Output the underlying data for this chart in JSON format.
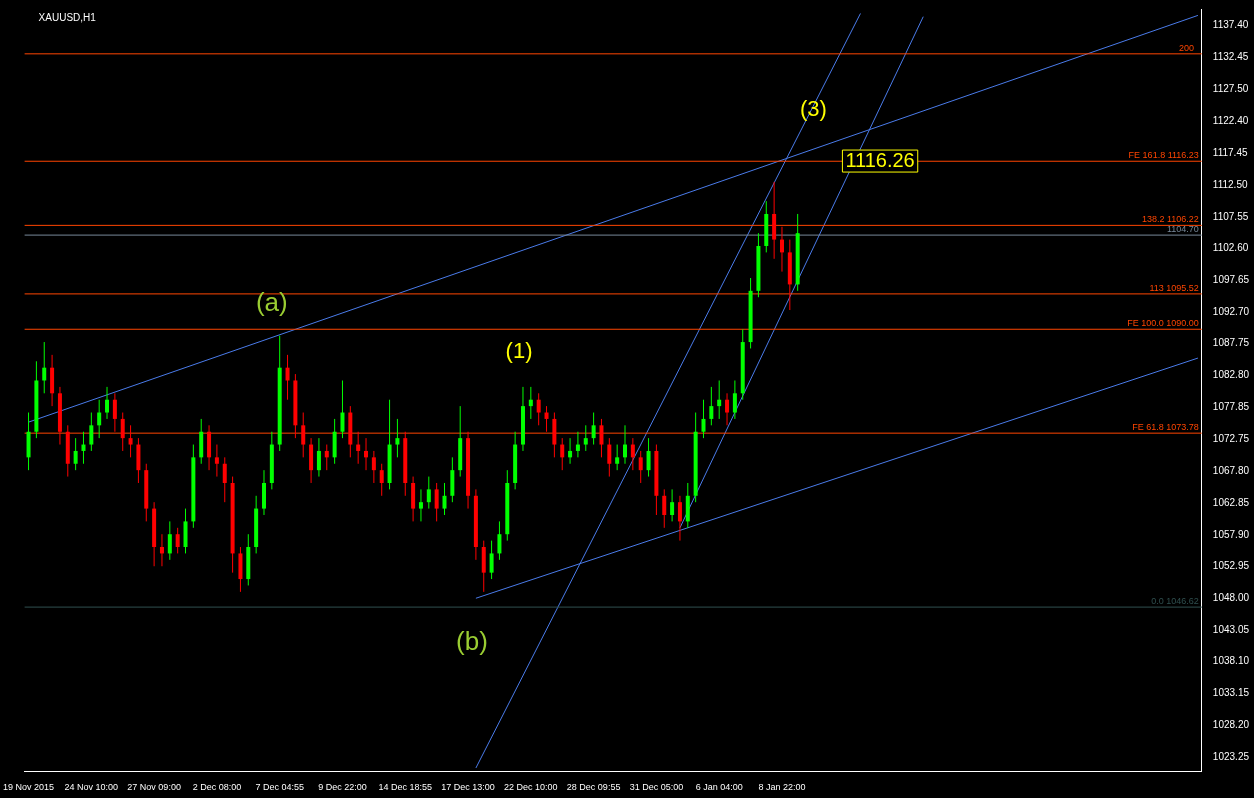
{
  "chart_data": {
    "type": "candlestick",
    "title": "XAUUSD,H1",
    "categories": [
      "19 Nov 2015",
      null,
      null,
      null,
      null,
      null,
      null,
      null,
      "24 Nov 10:00",
      null,
      null,
      null,
      null,
      null,
      null,
      null,
      "27 Nov 09:00",
      null,
      null,
      null,
      null,
      null,
      null,
      null,
      "2 Dec 08:00",
      null,
      null,
      null,
      null,
      null,
      null,
      null,
      "7 Dec 04:55",
      null,
      null,
      null,
      null,
      null,
      null,
      null,
      "9 Dec 22:00",
      null,
      null,
      null,
      null,
      null,
      null,
      null,
      "14 Dec 18:55",
      null,
      null,
      null,
      null,
      null,
      null,
      null,
      "17 Dec 13:00",
      null,
      null,
      null,
      null,
      null,
      null,
      null,
      "22 Dec 10:00",
      null,
      null,
      null,
      null,
      null,
      null,
      null,
      "28 Dec 09:55",
      null,
      null,
      null,
      null,
      null,
      null,
      null,
      "31 Dec 05:00",
      null,
      null,
      null,
      null,
      null,
      null,
      null,
      "6 Jan 04:00",
      null,
      null,
      null,
      null,
      null,
      null,
      null,
      "8 Jan 22:00",
      null,
      null,
      null,
      null,
      null,
      null,
      null,
      null,
      null,
      null,
      null,
      null,
      null,
      null,
      null,
      null,
      null,
      null,
      null,
      null,
      null,
      null,
      null,
      null,
      null,
      null,
      null,
      null,
      null,
      null,
      null,
      null,
      null,
      null,
      null,
      null,
      null,
      null,
      null,
      null,
      null,
      null,
      null,
      null,
      null,
      null,
      null,
      null,
      null,
      null,
      null,
      null,
      null
    ],
    "ohlc": [
      [
        1070,
        1077,
        1068,
        1074
      ],
      [
        1074,
        1085,
        1073,
        1082
      ],
      [
        1082,
        1088,
        1080,
        1084
      ],
      [
        1084,
        1086,
        1078,
        1080
      ],
      [
        1080,
        1081,
        1072,
        1074
      ],
      [
        1074,
        1075,
        1067,
        1069
      ],
      [
        1069,
        1073,
        1068,
        1071
      ],
      [
        1071,
        1074,
        1069,
        1072
      ],
      [
        1072,
        1077,
        1071,
        1075
      ],
      [
        1075,
        1079,
        1073,
        1077
      ],
      [
        1077,
        1081,
        1076,
        1079
      ],
      [
        1079,
        1080,
        1074,
        1076
      ],
      [
        1076,
        1077,
        1071,
        1073
      ],
      [
        1073,
        1075,
        1070,
        1072
      ],
      [
        1072,
        1073,
        1066,
        1068
      ],
      [
        1068,
        1069,
        1060,
        1062
      ],
      [
        1062,
        1063,
        1053,
        1056
      ],
      [
        1056,
        1058,
        1053,
        1055
      ],
      [
        1055,
        1060,
        1054,
        1058
      ],
      [
        1058,
        1059,
        1055,
        1056
      ],
      [
        1056,
        1062,
        1055,
        1060
      ],
      [
        1060,
        1072,
        1059,
        1070
      ],
      [
        1070,
        1076,
        1069,
        1074
      ],
      [
        1074,
        1075,
        1068,
        1070
      ],
      [
        1070,
        1072,
        1067,
        1069
      ],
      [
        1069,
        1070,
        1063,
        1066
      ],
      [
        1066,
        1067,
        1052,
        1055
      ],
      [
        1055,
        1056,
        1049,
        1051
      ],
      [
        1051,
        1058,
        1050,
        1056
      ],
      [
        1056,
        1064,
        1055,
        1062
      ],
      [
        1062,
        1068,
        1061,
        1066
      ],
      [
        1066,
        1074,
        1065,
        1072
      ],
      [
        1072,
        1089,
        1071,
        1084
      ],
      [
        1084,
        1086,
        1079,
        1082
      ],
      [
        1082,
        1083,
        1073,
        1075
      ],
      [
        1075,
        1077,
        1070,
        1072
      ],
      [
        1072,
        1073,
        1066,
        1068
      ],
      [
        1068,
        1073,
        1067,
        1071
      ],
      [
        1071,
        1072,
        1068,
        1070
      ],
      [
        1070,
        1076,
        1069,
        1074
      ],
      [
        1074,
        1082,
        1073,
        1077
      ],
      [
        1077,
        1078,
        1070,
        1072
      ],
      [
        1072,
        1074,
        1069,
        1071
      ],
      [
        1071,
        1073,
        1068,
        1070
      ],
      [
        1070,
        1071,
        1066,
        1068
      ],
      [
        1068,
        1069,
        1064,
        1066
      ],
      [
        1066,
        1079,
        1065,
        1072
      ],
      [
        1072,
        1076,
        1070,
        1073
      ],
      [
        1073,
        1074,
        1064,
        1066
      ],
      [
        1066,
        1067,
        1060,
        1062
      ],
      [
        1062,
        1065,
        1060,
        1063
      ],
      [
        1063,
        1067,
        1062,
        1065
      ],
      [
        1065,
        1066,
        1060,
        1062
      ],
      [
        1062,
        1066,
        1061,
        1064
      ],
      [
        1064,
        1070,
        1063,
        1068
      ],
      [
        1068,
        1078,
        1067,
        1073
      ],
      [
        1073,
        1074,
        1062,
        1064
      ],
      [
        1064,
        1065,
        1054,
        1056
      ],
      [
        1056,
        1057,
        1049,
        1052
      ],
      [
        1052,
        1057,
        1051,
        1055
      ],
      [
        1055,
        1060,
        1054,
        1058
      ],
      [
        1058,
        1068,
        1057,
        1066
      ],
      [
        1066,
        1074,
        1065,
        1072
      ],
      [
        1072,
        1081,
        1071,
        1078
      ],
      [
        1078,
        1081,
        1076,
        1079
      ],
      [
        1079,
        1080,
        1075,
        1077
      ],
      [
        1077,
        1078,
        1074,
        1076
      ],
      [
        1076,
        1077,
        1070,
        1072
      ],
      [
        1072,
        1073,
        1068,
        1070
      ],
      [
        1070,
        1073,
        1069,
        1071
      ],
      [
        1071,
        1074,
        1070,
        1072
      ],
      [
        1072,
        1075,
        1071,
        1073
      ],
      [
        1073,
        1077,
        1072,
        1075
      ],
      [
        1075,
        1076,
        1070,
        1072
      ],
      [
        1072,
        1073,
        1067,
        1069
      ],
      [
        1069,
        1072,
        1068,
        1070
      ],
      [
        1070,
        1075,
        1069,
        1072
      ],
      [
        1072,
        1073,
        1068,
        1070
      ],
      [
        1070,
        1071,
        1066,
        1068
      ],
      [
        1068,
        1073,
        1067,
        1071
      ],
      [
        1071,
        1072,
        1061,
        1064
      ],
      [
        1064,
        1065,
        1059,
        1061
      ],
      [
        1061,
        1065,
        1060,
        1063
      ],
      [
        1063,
        1064,
        1057,
        1060
      ],
      [
        1060,
        1066,
        1059,
        1064
      ],
      [
        1064,
        1077,
        1063,
        1074
      ],
      [
        1074,
        1079,
        1073,
        1076
      ],
      [
        1076,
        1081,
        1075,
        1078
      ],
      [
        1078,
        1082,
        1076,
        1079
      ],
      [
        1079,
        1080,
        1075,
        1077
      ],
      [
        1077,
        1082,
        1076,
        1080
      ],
      [
        1080,
        1090,
        1079,
        1088
      ],
      [
        1088,
        1098,
        1087,
        1096
      ],
      [
        1096,
        1105,
        1095,
        1103
      ],
      [
        1103,
        1110,
        1102,
        1108
      ],
      [
        1108,
        1113,
        1101,
        1104
      ],
      [
        1104,
        1106,
        1099,
        1102
      ],
      [
        1102,
        1104,
        1093,
        1097
      ],
      [
        1097,
        1108,
        1096,
        1105
      ],
      null,
      null,
      null,
      null,
      null,
      null,
      null,
      null,
      null,
      null,
      null,
      null,
      null,
      null,
      null,
      null,
      null,
      null,
      null,
      null,
      null,
      null,
      null,
      null,
      null,
      null,
      null,
      null,
      null,
      null,
      null,
      null,
      null,
      null,
      null,
      null,
      null,
      null,
      null,
      null,
      null,
      null,
      null,
      null,
      null,
      null,
      null,
      null,
      null,
      null,
      null
    ],
    "colors": [
      "#00ff00",
      "#00ff00",
      "#00ff00",
      "#ff0000",
      "#ff0000",
      "#ff0000",
      "#00ff00",
      "#00ff00",
      "#00ff00",
      "#00ff00",
      "#00ff00",
      "#ff0000",
      "#ff0000",
      "#ff0000",
      "#ff0000",
      "#ff0000",
      "#ff0000",
      "#ff0000",
      "#00ff00",
      "#ff0000",
      "#00ff00",
      "#00ff00",
      "#00ff00",
      "#ff0000",
      "#ff0000",
      "#ff0000",
      "#ff0000",
      "#ff0000",
      "#00ff00",
      "#00ff00",
      "#00ff00",
      "#00ff00",
      "#00ff00",
      "#ff0000",
      "#ff0000",
      "#ff0000",
      "#ff0000",
      "#00ff00",
      "#ff0000",
      "#00ff00",
      "#00ff00",
      "#ff0000",
      "#ff0000",
      "#ff0000",
      "#ff0000",
      "#ff0000",
      "#00ff00",
      "#00ff00",
      "#ff0000",
      "#ff0000",
      "#00ff00",
      "#00ff00",
      "#ff0000",
      "#00ff00",
      "#00ff00",
      "#00ff00",
      "#ff0000",
      "#ff0000",
      "#ff0000",
      "#00ff00",
      "#00ff00",
      "#00ff00",
      "#00ff00",
      "#00ff00",
      "#00ff00",
      "#ff0000",
      "#ff0000",
      "#ff0000",
      "#ff0000",
      "#00ff00",
      "#00ff00",
      "#00ff00",
      "#00ff00",
      "#ff0000",
      "#ff0000",
      "#00ff00",
      "#00ff00",
      "#ff0000",
      "#ff0000",
      "#00ff00",
      "#ff0000",
      "#ff0000",
      "#00ff00",
      "#ff0000",
      "#00ff00",
      "#00ff00",
      "#00ff00",
      "#00ff00",
      "#00ff00",
      "#ff0000",
      "#00ff00",
      "#00ff00",
      "#00ff00",
      "#00ff00",
      "#00ff00",
      "#ff0000",
      "#ff0000",
      "#ff0000",
      "#00ff00",
      null,
      null,
      null,
      null,
      null,
      null,
      null,
      null,
      null,
      null,
      null,
      null,
      null,
      null,
      null,
      null,
      null,
      null,
      null,
      null,
      null,
      null,
      null,
      null,
      null,
      null,
      null,
      null,
      null,
      null,
      null,
      null,
      null,
      null,
      null,
      null,
      null,
      null,
      null,
      null,
      null,
      null,
      null,
      null,
      null,
      null,
      null,
      null,
      null,
      null,
      null
    ],
    "series": [
      {
        "type": "line",
        "color": "#4a7bea",
        "values": [
          1075.5,
          null,
          null,
          null,
          null,
          null,
          null,
          null,
          null,
          null,
          null,
          null,
          null,
          null,
          null,
          null,
          null,
          null,
          null,
          null,
          null,
          null,
          null,
          null,
          null,
          null,
          null,
          null,
          null,
          null,
          null,
          null,
          null,
          null,
          null,
          null,
          null,
          null,
          null,
          null,
          null,
          null,
          null,
          null,
          null,
          null,
          null,
          null,
          null,
          null,
          null,
          null,
          null,
          null,
          null,
          null,
          null,
          null,
          null,
          null,
          null,
          null,
          null,
          null,
          null,
          null,
          null,
          null,
          null,
          null,
          null,
          null,
          null,
          null,
          null,
          null,
          null,
          null,
          null,
          null,
          null,
          null,
          null,
          null,
          null,
          null,
          null,
          null,
          null,
          null,
          null,
          null,
          null,
          null,
          null,
          null,
          null,
          null,
          null,
          null,
          null,
          null,
          null,
          null,
          null,
          null,
          null,
          null,
          null,
          null,
          null,
          null,
          null,
          null,
          null,
          null,
          null,
          null,
          null,
          null,
          null,
          null,
          null,
          null,
          null,
          null,
          null,
          null,
          null,
          null,
          null,
          null,
          null,
          null,
          null,
          null,
          null,
          null,
          null,
          null,
          null,
          null,
          null,
          null,
          null,
          null,
          null,
          null,
          null,
          1139.0
        ]
      },
      {
        "type": "line",
        "color": "#4a7bea",
        "values": [
          null,
          null,
          null,
          null,
          null,
          null,
          null,
          null,
          null,
          null,
          null,
          null,
          null,
          null,
          null,
          null,
          null,
          null,
          null,
          null,
          null,
          null,
          null,
          null,
          null,
          null,
          null,
          null,
          null,
          null,
          null,
          null,
          null,
          null,
          null,
          null,
          null,
          null,
          null,
          null,
          null,
          null,
          null,
          null,
          null,
          null,
          null,
          null,
          null,
          null,
          null,
          null,
          null,
          null,
          null,
          null,
          null,
          1048,
          null,
          null,
          null,
          null,
          null,
          null,
          null,
          null,
          null,
          null,
          null,
          null,
          null,
          null,
          null,
          null,
          null,
          null,
          null,
          null,
          null,
          null,
          null,
          null,
          null,
          null,
          null,
          null,
          null,
          null,
          null,
          null,
          null,
          null,
          null,
          null,
          null,
          null,
          null,
          null,
          null,
          null,
          null,
          null,
          null,
          null,
          null,
          null,
          null,
          null,
          null,
          null,
          null,
          null,
          null,
          null,
          null,
          null,
          null,
          null,
          null,
          null,
          null,
          null,
          null,
          null,
          null,
          null,
          null,
          null,
          null,
          null,
          null,
          null,
          null,
          null,
          null,
          null,
          null,
          null,
          null,
          null,
          null,
          null,
          null,
          null,
          null,
          null,
          null,
          null,
          null,
          1085.5
        ]
      },
      {
        "type": "line",
        "color": "#4a7bea",
        "values": [
          null,
          null,
          null,
          null,
          null,
          null,
          null,
          null,
          null,
          null,
          null,
          null,
          null,
          null,
          null,
          null,
          null,
          null,
          null,
          null,
          null,
          null,
          null,
          null,
          null,
          null,
          null,
          null,
          null,
          null,
          null,
          null,
          null,
          null,
          null,
          null,
          null,
          null,
          null,
          null,
          null,
          null,
          null,
          null,
          null,
          null,
          null,
          null,
          null,
          null,
          null,
          null,
          null,
          null,
          null,
          null,
          null,
          1021.5,
          null,
          null,
          null,
          null,
          null,
          null,
          null,
          null,
          null,
          null,
          null,
          null,
          null,
          null,
          null,
          null,
          null,
          null,
          null,
          null,
          null,
          null,
          null,
          null,
          null,
          null,
          null,
          null,
          null,
          null,
          null,
          null,
          null,
          null,
          null,
          null,
          null,
          null,
          null,
          null,
          null,
          null,
          null,
          null,
          null,
          null,
          null,
          null,
          1139.3,
          null,
          null,
          null,
          null,
          null,
          null,
          null,
          null,
          null,
          null,
          null,
          null,
          null,
          null,
          null,
          null,
          null,
          null,
          null,
          null,
          null,
          null,
          null,
          null,
          null,
          null,
          null,
          null,
          null,
          null,
          null,
          null,
          null,
          null,
          null,
          null,
          null,
          null,
          null,
          null,
          null,
          null,
          null
        ]
      },
      {
        "type": "line",
        "color": "#4a7bea",
        "values": [
          null,
          null,
          null,
          null,
          null,
          null,
          null,
          null,
          null,
          null,
          null,
          null,
          null,
          null,
          null,
          null,
          null,
          null,
          null,
          null,
          null,
          null,
          null,
          null,
          null,
          null,
          null,
          null,
          null,
          null,
          null,
          null,
          null,
          null,
          null,
          null,
          null,
          null,
          null,
          null,
          null,
          null,
          null,
          null,
          null,
          null,
          null,
          null,
          null,
          null,
          null,
          null,
          null,
          null,
          null,
          null,
          null,
          null,
          null,
          null,
          null,
          null,
          null,
          null,
          null,
          null,
          null,
          null,
          null,
          null,
          null,
          null,
          null,
          null,
          null,
          null,
          null,
          null,
          null,
          null,
          null,
          null,
          null,
          1059.0,
          null,
          null,
          null,
          null,
          null,
          null,
          null,
          null,
          null,
          null,
          null,
          null,
          null,
          null,
          null,
          null,
          null,
          null,
          null,
          null,
          null,
          null,
          null,
          null,
          null,
          null,
          null,
          null,
          null,
          null,
          1138.8,
          null,
          null,
          null,
          null,
          null,
          null,
          null,
          null,
          null,
          null,
          null,
          null,
          null,
          null,
          null,
          null,
          null,
          null,
          null,
          null,
          null,
          null,
          null,
          null,
          null,
          null,
          null,
          null,
          null,
          null,
          null,
          null,
          null,
          null,
          null
        ]
      }
    ],
    "ylim": [
      1021,
      1140
    ],
    "yticks": [
      {
        "value": 1137.4,
        "label": "1137.40"
      },
      1132.45,
      {
        "value": 1127.5,
        "label": "1127.50"
      },
      {
        "value": 1122.4,
        "label": "1122.40"
      },
      1117.45,
      {
        "value": 1112.5,
        "label": "1112.50"
      },
      1107.55,
      {
        "value": 1102.6,
        "label": "1102.60"
      },
      1097.65,
      {
        "value": 1092.7,
        "label": "1092.70"
      },
      1087.75,
      {
        "value": 1082.8,
        "label": "1082.80"
      },
      1077.85,
      1072.75,
      {
        "value": 1067.8,
        "label": "1067.80"
      },
      1062.85,
      {
        "value": 1057.9,
        "label": "1057.90"
      },
      1052.95,
      {
        "value": 1048,
        "label": "1048.00"
      },
      1043.05,
      {
        "value": 1038.1,
        "label": "1038.10"
      },
      1033.15,
      {
        "value": 1028.2,
        "label": "1028.20"
      },
      1023.25
    ],
    "ref_lines": [
      {
        "axis": "y",
        "value": 1133,
        "color": "#ff4500"
      },
      {
        "axis": "y",
        "value": 1116.23,
        "label": "FE 161.8 1116.23",
        "color": "#ff4500"
      },
      {
        "axis": "y",
        "value": 1106.22,
        "label": "138.2 1106.22",
        "color": "#ff4500"
      },
      {
        "axis": "y",
        "value": 1104.7,
        "label": "1104.70",
        "color": "#778899"
      },
      {
        "axis": "y",
        "value": 1095.52,
        "label": "113 1095.52",
        "color": "#ff4500"
      },
      {
        "axis": "y",
        "value": 1090.0,
        "label": "FE 100.0 1090.00",
        "color": "#ff4500"
      },
      {
        "axis": "y",
        "value": 1073.78,
        "label": "FE 61.8 1073.78",
        "color": "#ff4500"
      },
      {
        "axis": "y",
        "value": 1046.62,
        "label": "0.0 1046.62",
        "color": "#2f4f4f"
      }
    ],
    "annotations": [
      "(a)",
      "(b)",
      "(1)",
      "(3)",
      "1116.26",
      "200"
    ],
    "grid": false
  }
}
